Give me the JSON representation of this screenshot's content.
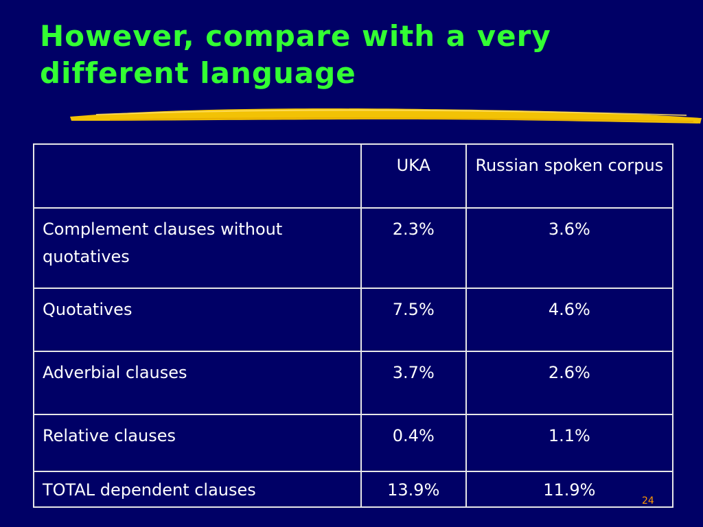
{
  "slide": {
    "title_line1": "However, compare with a very",
    "title_line2": "different language",
    "page_number": "24"
  },
  "table": {
    "header": [
      "",
      "UKA",
      "Russian spoken corpus"
    ],
    "rows": [
      [
        "Complement clauses without quotatives",
        "2.3%",
        "3.6%"
      ],
      [
        "Quotatives",
        "7.5%",
        "4.6%"
      ],
      [
        "Adverbial clauses",
        "3.7%",
        "2.6%"
      ],
      [
        "Relative clauses",
        "0.4%",
        "1.1%"
      ],
      [
        "TOTAL dependent clauses",
        "13.9%",
        "11.9%"
      ]
    ]
  },
  "colors": {
    "background": "#000066",
    "title": "#33ff33",
    "accent_stroke": "#ffcc00",
    "page_number": "#ff9900"
  }
}
